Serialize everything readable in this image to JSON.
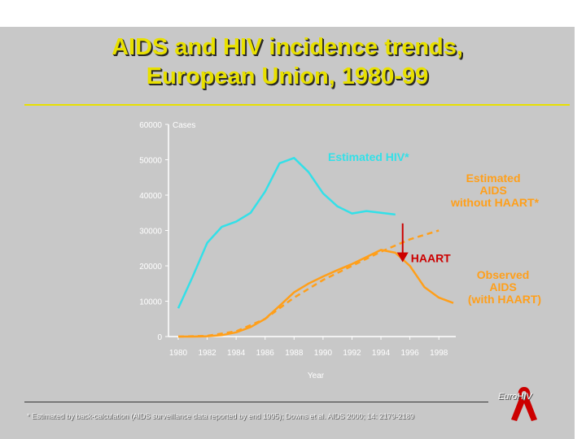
{
  "slide": {
    "title_line_1": "AIDS and HIV incidence trends,",
    "title_line_2": "European Union, 1980-99",
    "footnote": "* Estimated by back-calculation (AIDS surveillance data reported by end 1995); Downs et al. AIDS 2000; 14: 2179-2189",
    "brand": "EuroHIV"
  },
  "colors": {
    "background": "#c8c8c8",
    "title": "#e8e000",
    "hiv": "#33e0e8",
    "aids": "#ff9f1a",
    "observed_label": "#ff9f1a",
    "haart": "#cc0000",
    "ribbon": "#cc0000"
  },
  "chart_data": {
    "type": "line",
    "title": "AIDS and HIV incidence trends, European Union, 1980-99",
    "ylabel": "Cases",
    "xlabel": "Year",
    "ylim": [
      0,
      60000
    ],
    "xlim": [
      1980,
      1999
    ],
    "x_ticks": [
      1980,
      1982,
      1984,
      1986,
      1988,
      1990,
      1992,
      1994,
      1996,
      1998
    ],
    "y_ticks": [
      0,
      10000,
      20000,
      30000,
      40000,
      50000,
      60000
    ],
    "series": [
      {
        "name": "Estimated HIV*",
        "label": "Estimated HIV*",
        "style": "solid",
        "x": [
          1980,
          1981,
          1982,
          1983,
          1984,
          1985,
          1986,
          1987,
          1988,
          1989,
          1990,
          1991,
          1992,
          1993,
          1994,
          1995
        ],
        "values": [
          8000,
          17000,
          26500,
          31000,
          32500,
          35000,
          41000,
          49000,
          50500,
          46500,
          40500,
          36800,
          34800,
          35500,
          35000,
          34500
        ]
      },
      {
        "name": "Estimated AIDS without HAART*",
        "label_lines": [
          "Estimated",
          "AIDS",
          "without HAART*"
        ],
        "style": "dashed",
        "x": [
          1980,
          1982,
          1984,
          1986,
          1988,
          1990,
          1992,
          1994,
          1996,
          1998
        ],
        "values": [
          0,
          200,
          1500,
          5000,
          11000,
          16000,
          20000,
          24000,
          27500,
          30000
        ]
      },
      {
        "name": "Observed AIDS (with HAART)",
        "label_lines": [
          "Observed",
          "AIDS",
          "(with HAART)"
        ],
        "style": "solid",
        "x": [
          1980,
          1981,
          1982,
          1983,
          1984,
          1985,
          1986,
          1987,
          1988,
          1989,
          1990,
          1991,
          1992,
          1993,
          1994,
          1995,
          1996,
          1997,
          1998,
          1999
        ],
        "values": [
          0,
          0,
          100,
          400,
          1200,
          2700,
          5000,
          8700,
          12500,
          15000,
          17000,
          18800,
          20500,
          22500,
          24500,
          23700,
          20000,
          14000,
          11000,
          9500
        ]
      }
    ],
    "annotations": [
      {
        "text": "HAART",
        "x": 1995.5,
        "arrow_from": 32000,
        "arrow_to": 21500
      }
    ]
  }
}
